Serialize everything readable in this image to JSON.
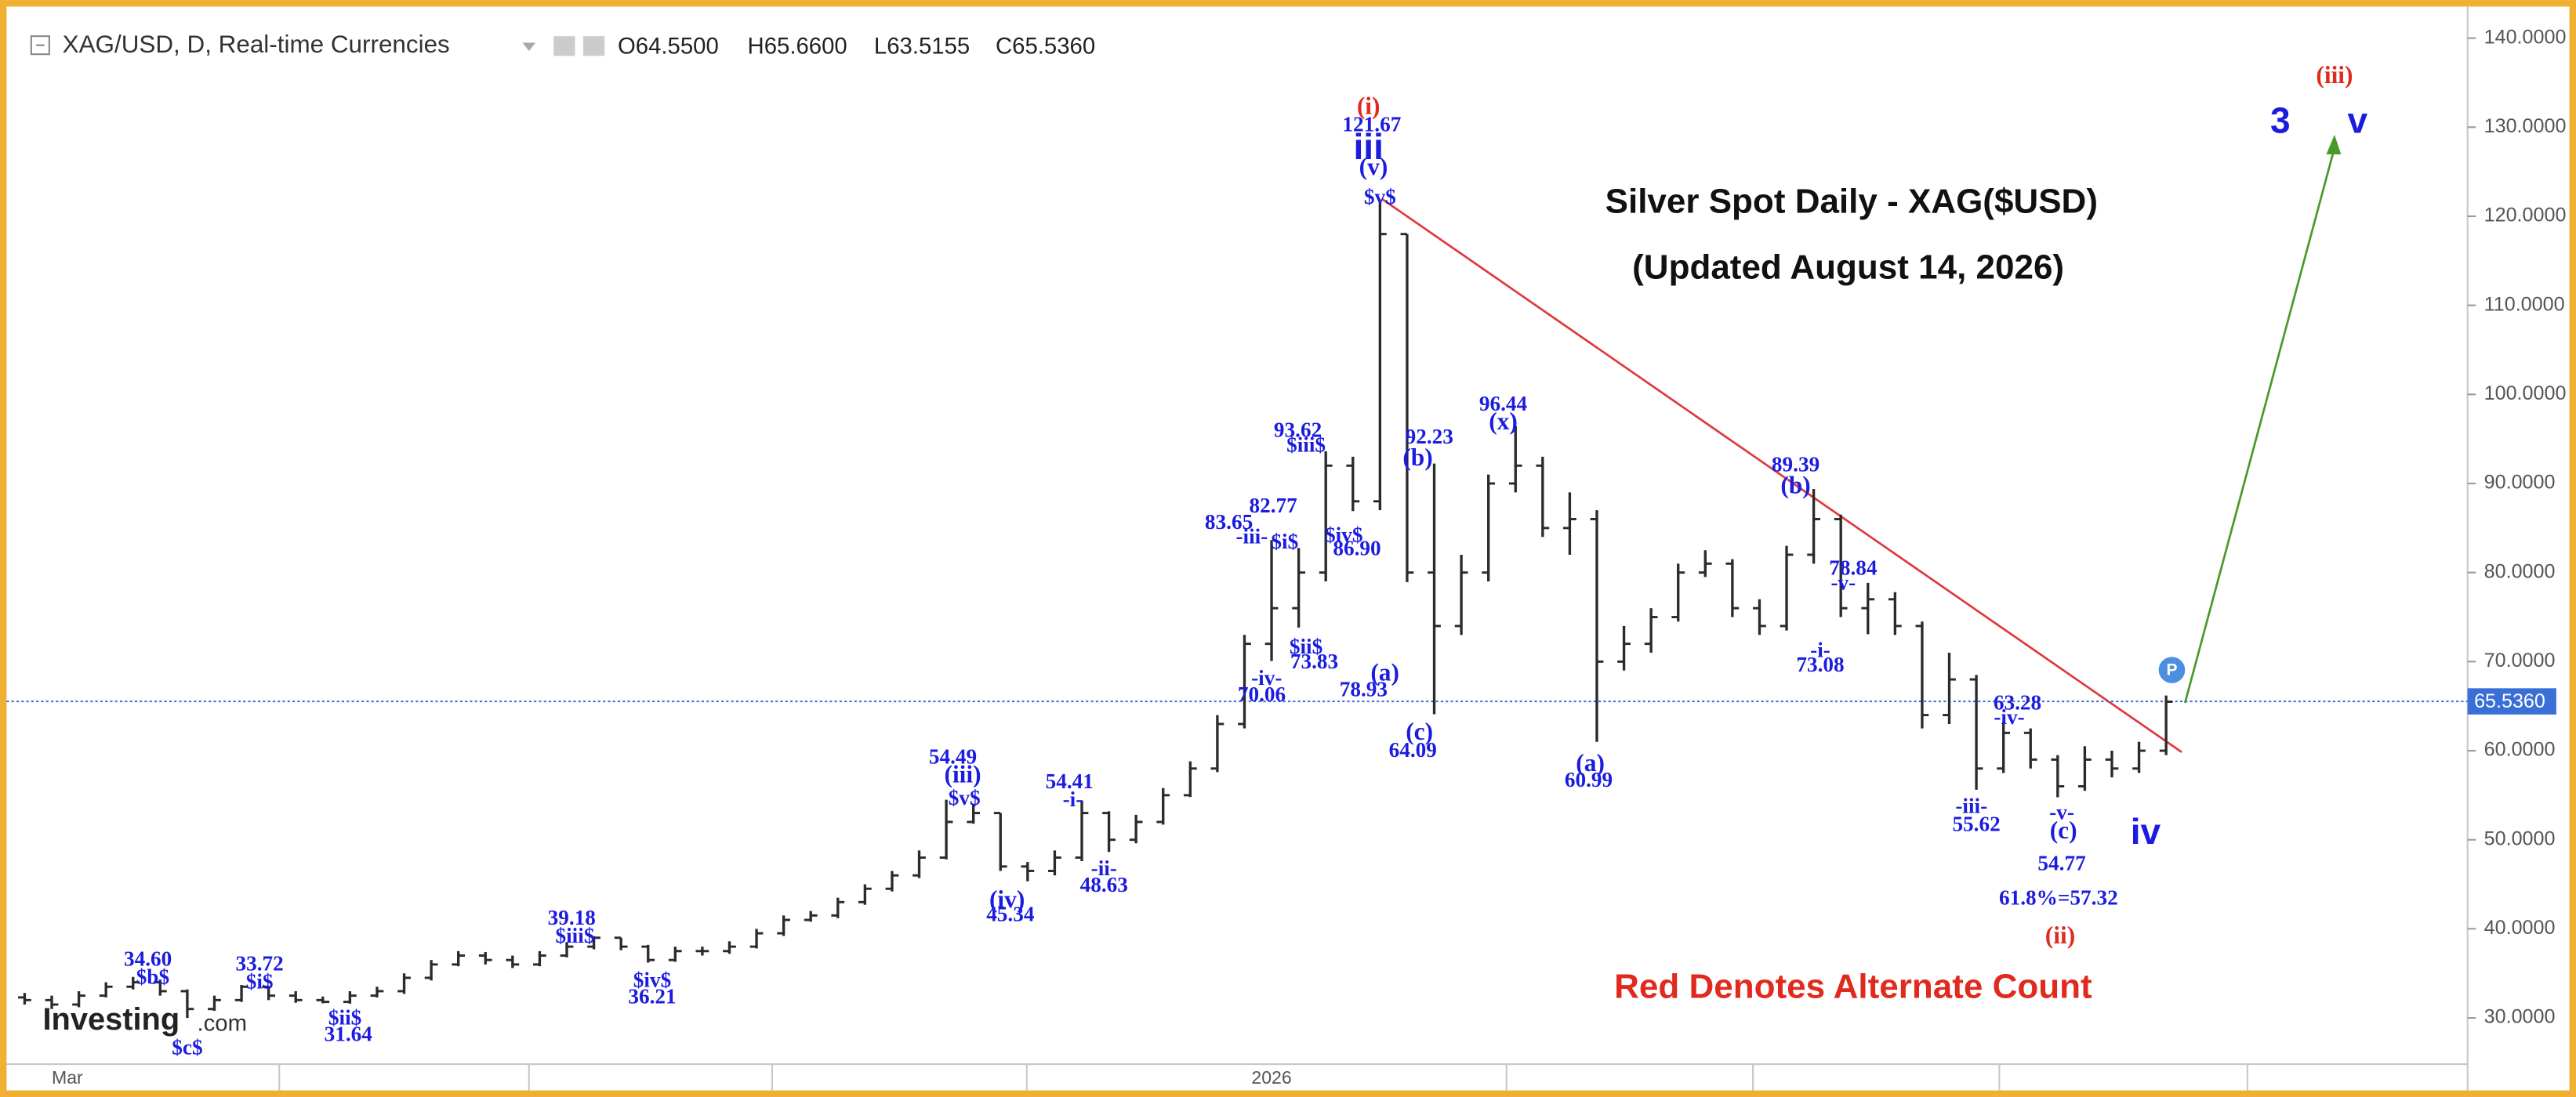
{
  "chart_data": {
    "type": "ohlc",
    "symbol": "XAG/USD, D, Real-time Currencies",
    "ohlc_header": [
      "O64.5500",
      "H65.6600",
      "L63.5155",
      "C65.5360"
    ],
    "title": "Silver Spot Daily - XAG($USD)",
    "subtitle": "(Updated August 14, 2026)",
    "note": "Red Denotes Alternate Count",
    "note_color": "#e02a1e",
    "logo": {
      "name": "Investing",
      "suffix": ".com"
    },
    "color": "#2b2b2b",
    "categories": [
      null,
      "Mar",
      null,
      null,
      null,
      null,
      null,
      null,
      null,
      null,
      null,
      null,
      null,
      null,
      null,
      null,
      null,
      null,
      null,
      null,
      null,
      null,
      null,
      null,
      null,
      null,
      null,
      null,
      null,
      null,
      null,
      null,
      null,
      null,
      null,
      null,
      null,
      null,
      null,
      null,
      null,
      null,
      null,
      null,
      null,
      null,
      "2026",
      null,
      null,
      null,
      null,
      null,
      null,
      null,
      null,
      null,
      null,
      null,
      null,
      null,
      null,
      null,
      null,
      null,
      null,
      null,
      null,
      null,
      null,
      null,
      null,
      null,
      null,
      null,
      null,
      null,
      null,
      null,
      null,
      null
    ],
    "open": [
      32.3,
      32,
      31.5,
      32.5,
      33.5,
      34,
      33,
      31,
      32,
      33.5,
      32.5,
      32,
      31.8,
      32.5,
      33,
      34.5,
      36,
      37,
      36.5,
      36,
      37,
      38,
      39,
      38,
      36.5,
      37.5,
      37.5,
      38,
      39.5,
      41,
      41.5,
      43,
      44.5,
      46,
      48,
      52,
      53,
      47,
      46.5,
      48,
      53,
      50,
      52,
      55,
      58,
      63,
      72,
      76,
      80,
      92,
      88,
      118,
      80,
      74,
      80,
      90,
      92,
      85,
      86,
      70,
      72,
      75,
      80,
      81,
      76,
      74,
      82,
      86,
      76,
      77,
      74,
      64,
      68,
      58,
      62,
      59,
      56,
      59,
      58,
      60
    ],
    "high": [
      32.8,
      32.5,
      33,
      34,
      34.6,
      34.3,
      33.2,
      32.5,
      33.7,
      33.6,
      33,
      32.4,
      33,
      33.5,
      35,
      36.5,
      37.5,
      37.4,
      37,
      37.5,
      38.5,
      39.18,
      39,
      38.2,
      38,
      38,
      38.6,
      40,
      41.5,
      42,
      43.5,
      45,
      46.5,
      48.8,
      54.49,
      54,
      53,
      47.5,
      48.8,
      54.41,
      53.2,
      52.8,
      55.8,
      58.8,
      64,
      73,
      83.65,
      82.77,
      93.62,
      93,
      121.67,
      118,
      92.23,
      82,
      91,
      96.44,
      93,
      89,
      87,
      74,
      76,
      81,
      82.5,
      81.5,
      77,
      83,
      89.39,
      86.5,
      78.84,
      77.8,
      74.5,
      71,
      68.5,
      63.28,
      62.5,
      59.5,
      60.5,
      60,
      61,
      66.2
    ],
    "low": [
      31.5,
      31,
      31.2,
      32.3,
      33.2,
      32.5,
      30,
      30.8,
      31.8,
      32,
      31.7,
      31.64,
      31.6,
      32.3,
      32.7,
      34.2,
      35.8,
      36,
      35.6,
      35.8,
      36.8,
      37.7,
      37.6,
      36.21,
      36.3,
      37,
      37.2,
      37.8,
      39.2,
      40.8,
      41.2,
      42.7,
      44.2,
      45.7,
      47.8,
      51.8,
      46.5,
      45.34,
      46,
      47.6,
      48.63,
      49.6,
      51.7,
      54.8,
      57.6,
      62.5,
      70.06,
      73.83,
      79,
      86.9,
      87,
      78.93,
      64.09,
      73,
      79,
      89,
      84,
      82,
      60.99,
      69,
      71,
      74.5,
      79.5,
      75,
      73,
      73.5,
      81,
      75,
      73.08,
      73,
      62.5,
      63,
      55.62,
      57.5,
      58,
      54.77,
      55.5,
      57,
      57.5,
      59.5
    ],
    "close": [
      32,
      31.5,
      32.5,
      33.5,
      34,
      33,
      31,
      32,
      33.5,
      32.5,
      32,
      31.8,
      32.5,
      33,
      34.5,
      36,
      37,
      36.5,
      36,
      37,
      38,
      39,
      38,
      36.5,
      37.5,
      37.5,
      38,
      39.5,
      41,
      41.5,
      43,
      44.5,
      46,
      48,
      52,
      53,
      47,
      46.5,
      48,
      53,
      50,
      52,
      55,
      58,
      63,
      72,
      76,
      80,
      92,
      88,
      118,
      80,
      74,
      80,
      90,
      92,
      85,
      86,
      70,
      72,
      75,
      80,
      81,
      76,
      74,
      82,
      86,
      76,
      77,
      74,
      64,
      68,
      58,
      62,
      59,
      56,
      59,
      58,
      60,
      65.5
    ],
    "ylim": [
      22.6,
      142.8
    ],
    "yticks": [
      {
        "value": 30,
        "label": "30.0000"
      },
      {
        "value": 40,
        "label": "40.0000"
      },
      {
        "value": 50,
        "label": "50.0000"
      },
      {
        "value": 60,
        "label": "60.0000"
      },
      {
        "value": 70,
        "label": "70.0000"
      },
      {
        "value": 80,
        "label": "80.0000"
      },
      {
        "value": 90,
        "label": "90.0000"
      },
      {
        "value": 100,
        "label": "100.0000"
      },
      {
        "value": 110,
        "label": "110.0000"
      },
      {
        "value": 120,
        "label": "120.0000"
      },
      {
        "value": 130,
        "label": "130.0000"
      },
      {
        "value": 140,
        "label": "140.0000"
      }
    ],
    "last_price": {
      "value": 65.536,
      "label": "65.5360"
    },
    "last_price_color": "#3a6fd8",
    "grid": false,
    "annotations": {
      "waves": {
        "color": "#1c1ce0",
        "texts": [
          "34.60",
          "$b$",
          "$c$",
          "33.72",
          "$i$",
          "$ii$",
          "31.64",
          "39.18",
          "$iii$",
          "$iv$",
          "36.21",
          "54.49",
          "(iii)",
          "$v$",
          "(iv)",
          "45.34",
          "54.41",
          "-i-",
          "-ii-",
          "48.63",
          "83.65",
          "-iii-",
          "82.77",
          "$i$",
          "93.62",
          "$iii$",
          "$iv$",
          "86.90",
          "$ii$",
          "73.83",
          "-iv-",
          "70.06",
          "(a)",
          "78.93",
          "(c)",
          "64.09",
          "92.23",
          "(b)",
          "121.67",
          "(v)",
          "$v$",
          "96.44",
          "(x)",
          "(a)",
          "60.99",
          "89.39",
          "(b)",
          "78.84",
          "-v-",
          "-i-",
          "73.08",
          "63.28",
          "-iv-",
          "-iii-",
          "55.62",
          "-v-",
          "(c)",
          "54.77",
          "61.8%=57.32"
        ]
      },
      "degrees": {
        "color": "#1c1ce0",
        "texts": [
          "iii",
          "iv",
          "3",
          "v"
        ]
      },
      "alternate": {
        "color": "#e02a1e",
        "texts": [
          "(i)",
          "(iii)",
          "(ii)"
        ]
      }
    }
  }
}
